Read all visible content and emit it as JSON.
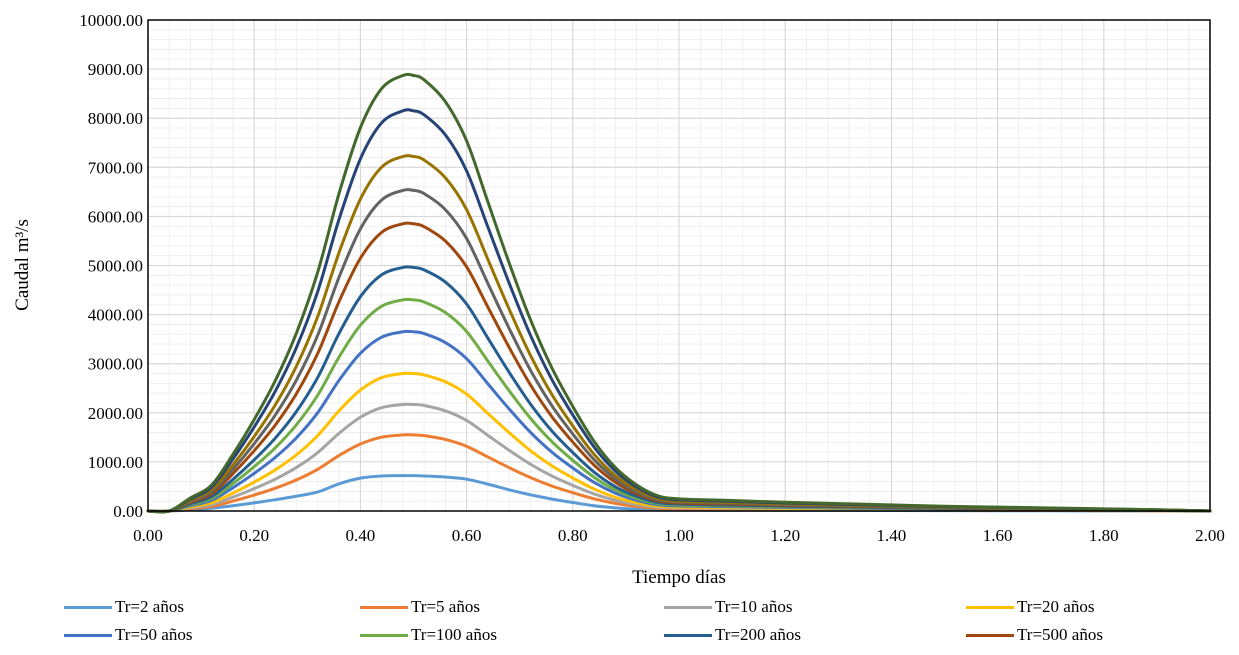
{
  "chart_data": {
    "type": "line",
    "xlabel": "Tiempo días",
    "ylabel": "Caudal m³/s",
    "xlim": [
      0,
      2
    ],
    "ylim": [
      0,
      10000
    ],
    "x_ticks": [
      "0.00",
      "0.20",
      "0.40",
      "0.60",
      "0.80",
      "1.00",
      "1.20",
      "1.40",
      "1.60",
      "1.80",
      "2.00"
    ],
    "y_ticks": [
      "0.00",
      "1000.00",
      "2000.00",
      "3000.00",
      "4000.00",
      "5000.00",
      "6000.00",
      "7000.00",
      "8000.00",
      "9000.00",
      "10000.00"
    ],
    "grid": true,
    "legend_position": "bottom",
    "x": [
      0,
      0.04,
      0.08,
      0.12,
      0.16,
      0.2,
      0.24,
      0.28,
      0.32,
      0.36,
      0.4,
      0.44,
      0.48,
      0.5,
      0.52,
      0.56,
      0.6,
      0.64,
      0.68,
      0.72,
      0.76,
      0.8,
      0.84,
      0.88,
      0.92,
      0.96,
      1.0,
      1.1,
      1.2,
      1.3,
      1.4,
      1.5,
      1.6,
      1.7,
      1.8,
      1.9,
      2.0
    ],
    "series": [
      {
        "name": "Tr=2 años",
        "color": "#5B9BD5",
        "peak": 720,
        "shape": "small"
      },
      {
        "name": "Tr=5 años",
        "color": "#ED7D31",
        "peak": 1550
      },
      {
        "name": "Tr=10 años",
        "color": "#A5A5A5",
        "peak": 2170
      },
      {
        "name": "Tr=20 años",
        "color": "#FFC000",
        "peak": 2800
      },
      {
        "name": "Tr=50 años",
        "color": "#4472C4",
        "peak": 3650
      },
      {
        "name": "Tr=100 años",
        "color": "#70AD47",
        "peak": 4300
      },
      {
        "name": "Tr=200 años",
        "color": "#255E91",
        "peak": 4960
      },
      {
        "name": "Tr=500 años",
        "color": "#9E480E",
        "peak": 5850
      },
      {
        "color": "#636363",
        "peak": 6530
      },
      {
        "color": "#997300",
        "peak": 7220
      },
      {
        "color": "#264478",
        "peak": 8150
      },
      {
        "color": "#43682B",
        "peak": 8870
      }
    ],
    "shape_ratios": {
      "standard": [
        0,
        0,
        0.03,
        0.06,
        0.13,
        0.21,
        0.3,
        0.41,
        0.55,
        0.73,
        0.88,
        0.97,
        1.0,
        1.0,
        0.99,
        0.94,
        0.85,
        0.71,
        0.57,
        0.44,
        0.33,
        0.24,
        0.16,
        0.1,
        0.06,
        0.035,
        0.028,
        0.024,
        0.02,
        0.017,
        0.014,
        0.011,
        0.009,
        0.007,
        0.005,
        0.003,
        0
      ],
      "small": [
        0,
        0,
        0.03,
        0.08,
        0.15,
        0.23,
        0.32,
        0.42,
        0.54,
        0.77,
        0.93,
        0.99,
        1.0,
        1.0,
        0.99,
        0.96,
        0.9,
        0.76,
        0.6,
        0.46,
        0.34,
        0.24,
        0.15,
        0.09,
        0.05,
        0.03,
        0.025,
        0.022,
        0.019,
        0.016,
        0.013,
        0.01,
        0.008,
        0.006,
        0.004,
        0.002,
        0
      ]
    }
  },
  "legend": {
    "items": [
      "Tr=2 años",
      "Tr=5 años",
      "Tr=10 años",
      "Tr=20 años",
      "Tr=50 años",
      "Tr=100 años",
      "Tr=200 años",
      "Tr=500 años"
    ]
  }
}
